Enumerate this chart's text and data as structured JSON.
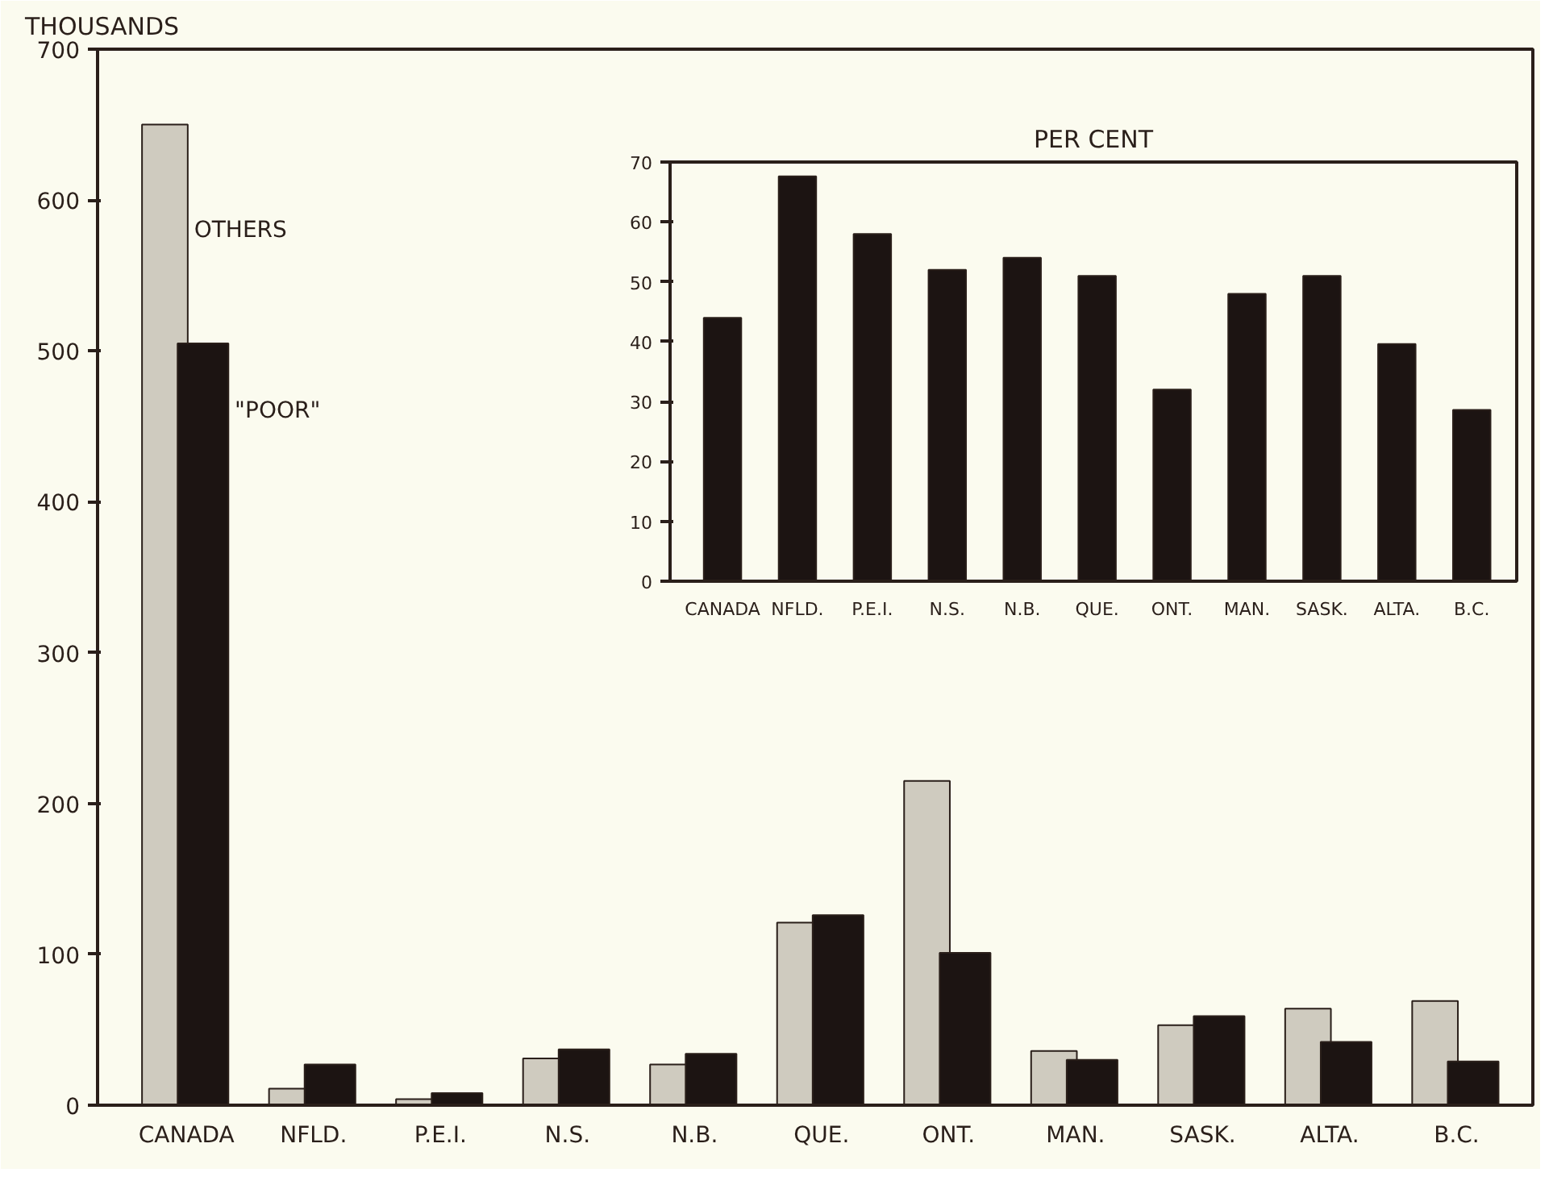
{
  "chart_data": [
    {
      "type": "bar",
      "ylabel": "THOUSANDS",
      "categories": [
        "CANADA",
        "NFLD.",
        "P.E.I.",
        "N.S.",
        "N.B.",
        "QUE.",
        "ONT.",
        "MAN.",
        "SASK.",
        "ALTA.",
        "B.C."
      ],
      "series": [
        {
          "name": "OTHERS",
          "color": "#cfcbbf",
          "values": [
            650,
            11,
            4,
            31,
            27,
            121,
            215,
            36,
            53,
            64,
            69
          ]
        },
        {
          "name": "\"POOR\"",
          "color": "#1c1412",
          "values": [
            505,
            27,
            8,
            37,
            34,
            126,
            101,
            30,
            59,
            42,
            29
          ]
        }
      ],
      "ylim": [
        0,
        700
      ],
      "yticks": [
        0,
        100,
        200,
        300,
        400,
        500,
        600,
        700
      ],
      "grid": false,
      "legend": false
    },
    {
      "type": "bar",
      "title": "PER CENT",
      "categories": [
        "CANADA",
        "NFLD.",
        "P.E.I.",
        "N.S.",
        "N.B.",
        "QUE.",
        "ONT.",
        "MAN.",
        "SASK.",
        "ALTA.",
        "B.C."
      ],
      "series": [
        {
          "color": "#1c1412",
          "values": [
            44,
            67.6,
            58,
            52,
            54,
            51,
            32,
            48,
            51,
            39.6,
            28.6
          ]
        }
      ],
      "ylim": [
        0,
        70
      ],
      "yticks": [
        0,
        10,
        20,
        30,
        40,
        50,
        60,
        70
      ],
      "grid": false
    }
  ]
}
